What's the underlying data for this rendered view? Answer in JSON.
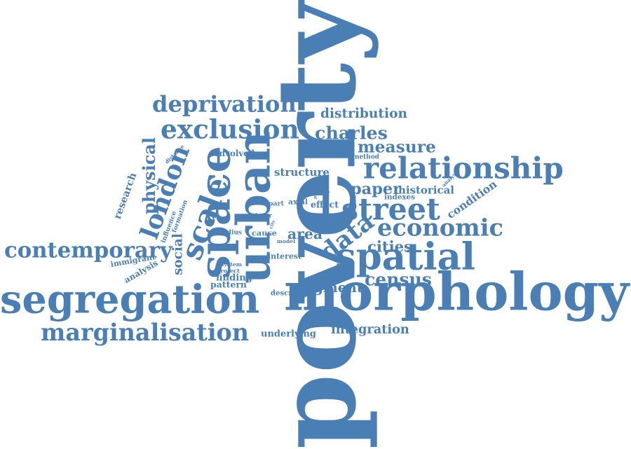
{
  "cloud": {
    "color": "#4a7fb5",
    "words": [
      "poverty",
      "morphology",
      "segregation",
      "urban",
      "space",
      "spatial",
      "street",
      "relationship",
      "london",
      "scale",
      "data",
      "economic",
      "marginalisation",
      "contemporary",
      "exclusion",
      "deprivation",
      "charles",
      "census",
      "measure",
      "physical",
      "social",
      "analysis",
      "distribution",
      "paper",
      "historical",
      "cities",
      "integration",
      "underlying",
      "segment",
      "immigrant",
      "area",
      "structure",
      "condition",
      "research",
      "finding",
      "pattern",
      "involved",
      "distance",
      "influence",
      "formation",
      "interest",
      "describe",
      "system",
      "project",
      "cause",
      "axial",
      "effect",
      "indexes",
      "method",
      "analyse",
      "present",
      "radius",
      "layer",
      "part",
      "model",
      "city",
      "play"
    ]
  }
}
